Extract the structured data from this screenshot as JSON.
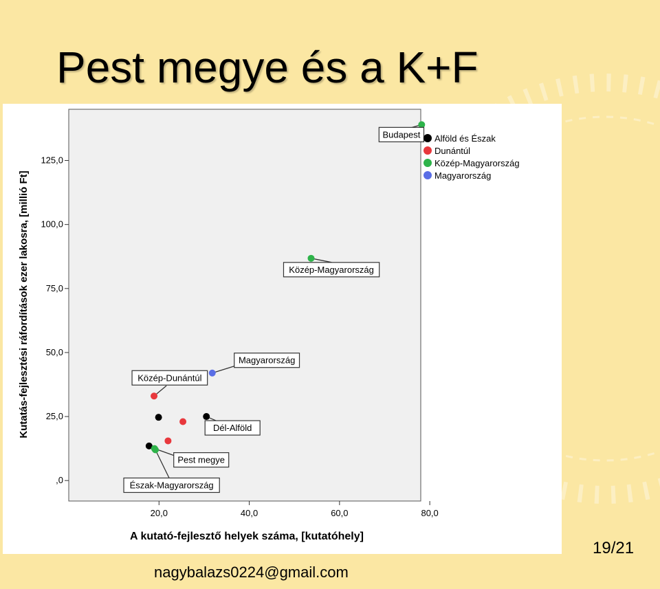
{
  "slide": {
    "title": "Pest megye és a K+F",
    "footer": "nagybalazs0224@gmail.com",
    "page_number": "19/21"
  },
  "chart_data": {
    "type": "scatter",
    "xlabel": "A kutató-fejlesztő helyek száma, [kutatóhely]",
    "ylabel": "Kutatás-fejlesztési ráfordítások ezer lakosra, [millió Ft]",
    "x_ticks": [
      20,
      40,
      60,
      80
    ],
    "x_tick_labels": [
      "20,0",
      "40,0",
      "60,0",
      "80,0"
    ],
    "y_ticks": [
      0,
      25,
      50,
      75,
      100,
      125
    ],
    "y_tick_labels": [
      ",0",
      "25,0",
      "50,0",
      "75,0",
      "100,0",
      "125,0"
    ],
    "xlim": [
      0,
      78
    ],
    "ylim": [
      -8,
      145
    ],
    "grid": false,
    "legend_position": "top-right",
    "series": [
      {
        "name": "Alföld és Észak",
        "color": "#000000",
        "points": [
          {
            "x": 17.8,
            "y": 13.5
          },
          {
            "x": 19.9,
            "y": 24.7
          },
          {
            "x": 30.5,
            "y": 25.0,
            "label": "Dél-Alföld"
          }
        ]
      },
      {
        "name": "Dunántúl",
        "color": "#e8383d",
        "points": [
          {
            "x": 18.9,
            "y": 33.0,
            "label": "Közép-Dunántúl"
          },
          {
            "x": 22.0,
            "y": 15.5
          },
          {
            "x": 25.3,
            "y": 23.0
          }
        ]
      },
      {
        "name": "Közép-Magyarország",
        "color": "#2eb34a",
        "points": [
          {
            "x": 78.2,
            "y": 139.0,
            "label": "Budapest"
          },
          {
            "x": 53.7,
            "y": 86.8,
            "label": "Közép-Magyarország"
          },
          {
            "x": 19.0,
            "y": 12.5,
            "label": "Pest megye"
          },
          {
            "x": 19.2,
            "y": 12.0,
            "label": "Észak-Magyarország"
          }
        ]
      },
      {
        "name": "Magyarország",
        "color": "#5a6ee6",
        "points": [
          {
            "x": 31.8,
            "y": 42.0,
            "label": "Magyarország"
          }
        ]
      }
    ]
  }
}
